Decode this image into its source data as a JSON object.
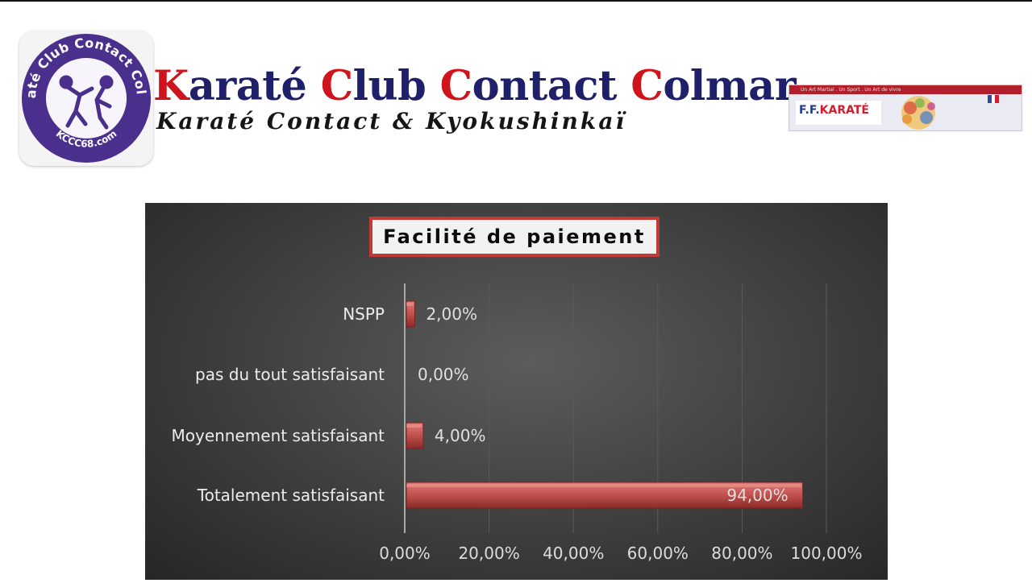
{
  "header": {
    "title_words": [
      {
        "cap": "K",
        "rest": "araté"
      },
      {
        "cap": "C",
        "rest": "lub"
      },
      {
        "cap": "C",
        "rest": "ontact"
      },
      {
        "cap": "C",
        "rest": "olmar"
      }
    ],
    "subtitle": "Karaté Contact & Kyokushinkaï",
    "logo_text_top": "Karaté Club Contact Colmar",
    "logo_text_bottom": "KCCC68.com",
    "ffk_brand_prefix": "F.F.",
    "ffk_brand_name": "KARATÉ",
    "ffk_strip_text": "Un Art Martial . Un Sport . Un Art de vivre"
  },
  "colors": {
    "accent_red": "#d0141c",
    "navy": "#20206a",
    "bar_red": "#c0504d",
    "chart_background": "#3e3e3e"
  },
  "chart_data": {
    "type": "bar",
    "orientation": "horizontal",
    "title": "Facilité de paiement",
    "categories": [
      "NSPP",
      "pas du tout satisfaisant",
      "Moyennement satisfaisant",
      "Totalement satisfaisant"
    ],
    "values": [
      2,
      0,
      4,
      94
    ],
    "value_labels": [
      "2,00%",
      "0,00%",
      "4,00%",
      "94,00%"
    ],
    "xlim": [
      0,
      100
    ],
    "x_ticks": [
      0,
      20,
      40,
      60,
      80,
      100
    ],
    "x_tick_labels": [
      "0,00%",
      "20,00%",
      "40,00%",
      "60,00%",
      "80,00%",
      "100,00%"
    ],
    "xlabel": "",
    "ylabel": "",
    "grid": true,
    "legend": "none"
  }
}
